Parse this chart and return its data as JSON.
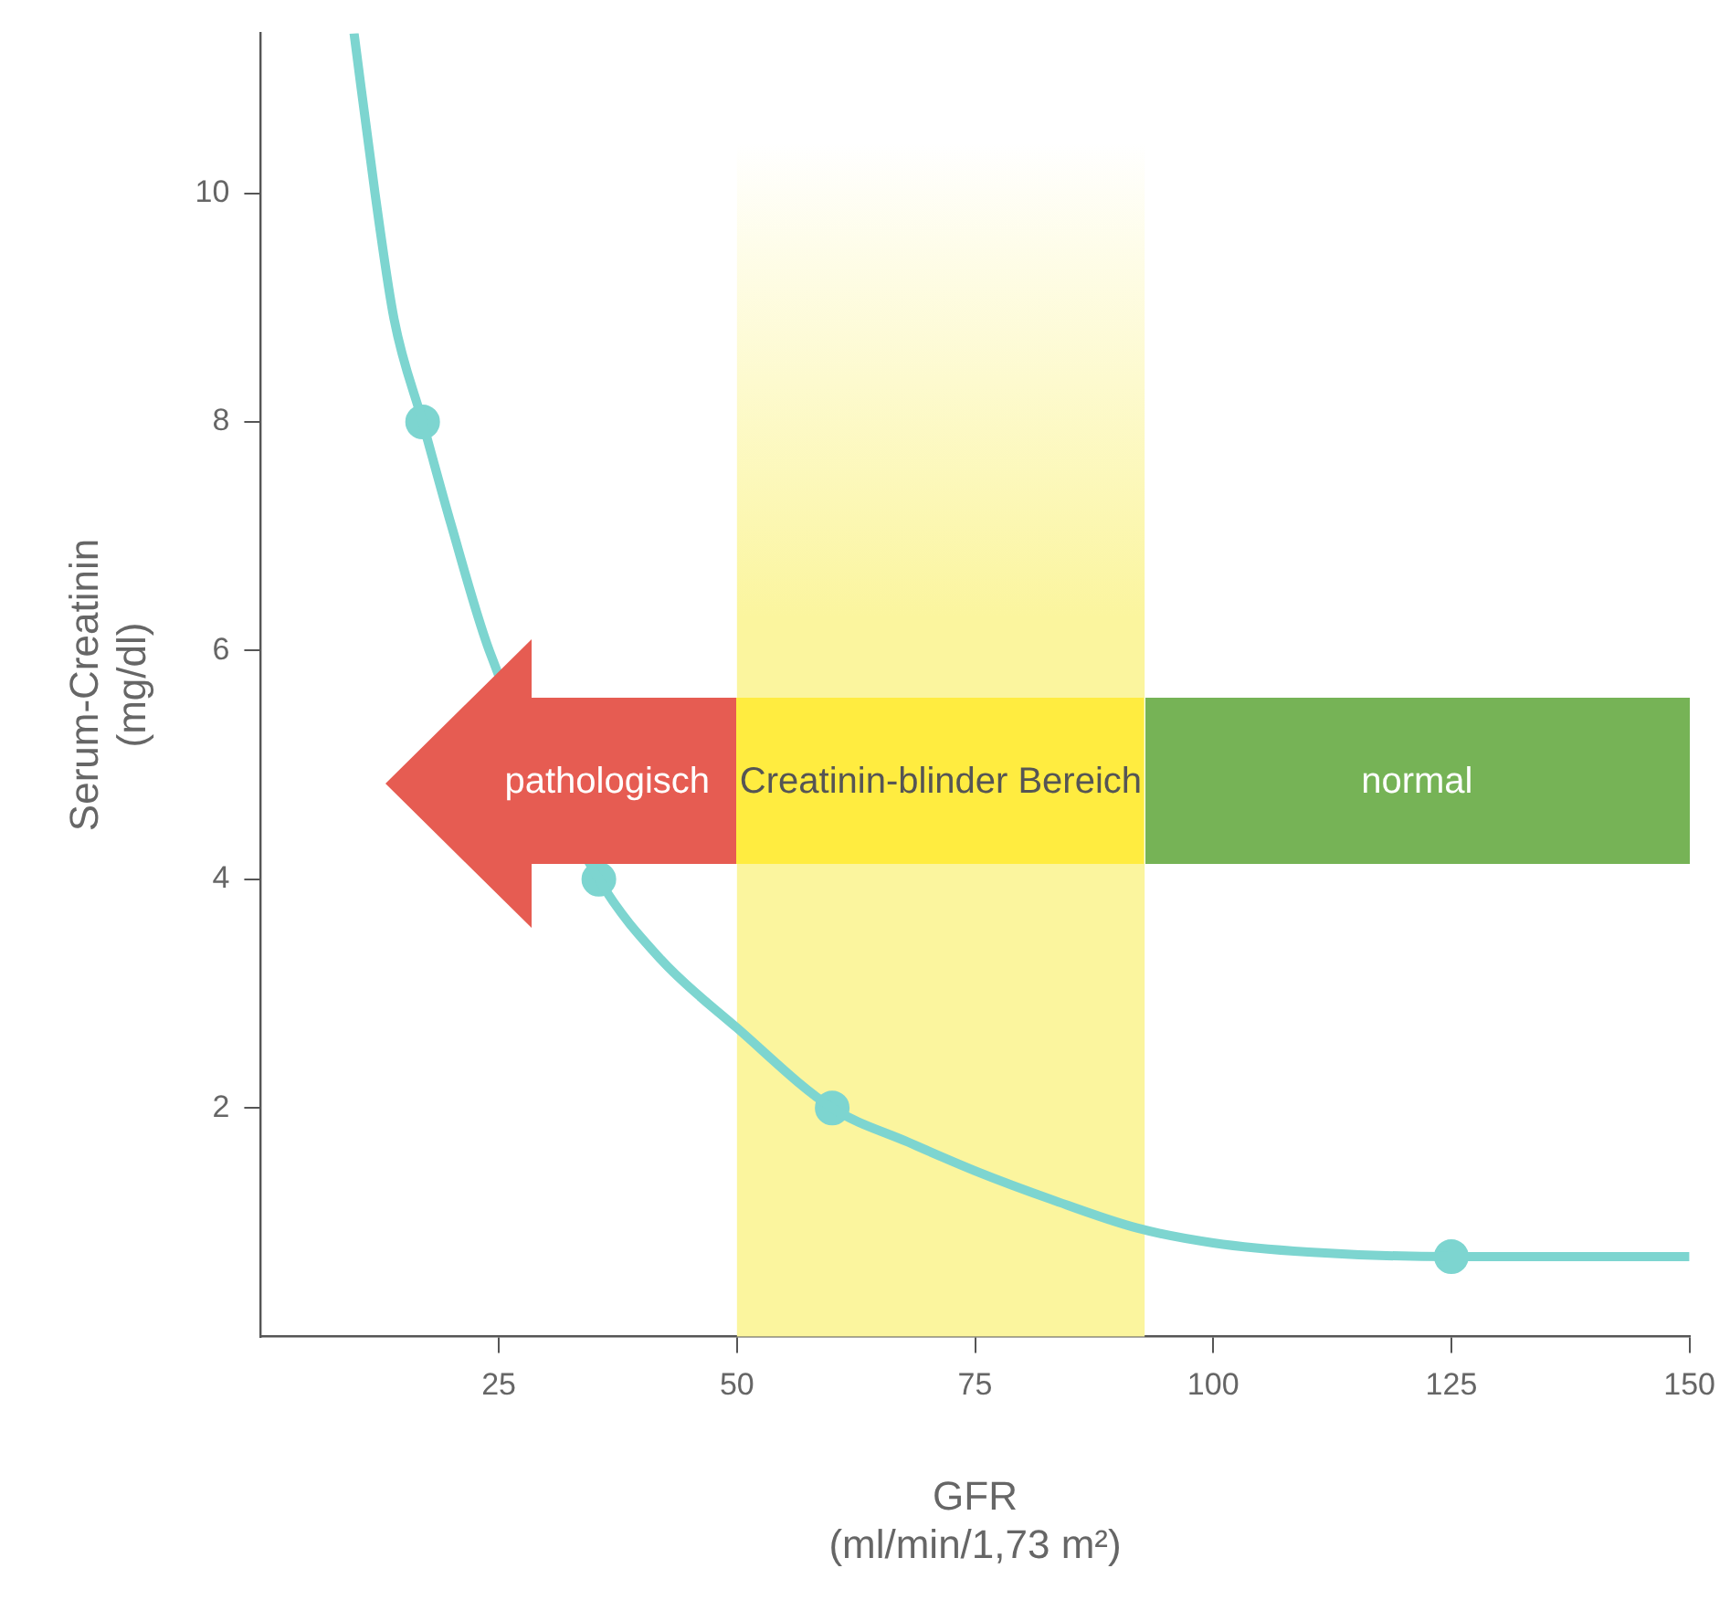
{
  "chart_data": {
    "type": "line",
    "xlabel": "GFR\n(ml/min/1,73 m²)",
    "ylabel": "Serum-Creatinin\n(mg/dl)",
    "series": [
      {
        "x": [
          9.8,
          12,
          14,
          17,
          20,
          24,
          28,
          35.5,
          42,
          50,
          60,
          68,
          75,
          83,
          92,
          100,
          110,
          125,
          140,
          150
        ],
        "values": [
          11.4,
          10,
          8.9,
          8,
          7.1,
          6,
          null,
          4,
          3.3,
          2.7,
          2,
          1.7,
          1.45,
          1.2,
          0.95,
          0.82,
          0.74,
          0.7,
          0.7,
          0.7
        ],
        "color": "#7dd5d0",
        "marker": "none"
      },
      {
        "type": "scatter",
        "x": [
          17,
          35.5,
          60,
          125
        ],
        "values": [
          8,
          4,
          2,
          0.7
        ],
        "color": "#7dd5d0",
        "marker": "circle"
      }
    ],
    "xlim": [
      0,
      150
    ],
    "xticks": [
      25,
      50,
      75,
      100,
      125,
      150
    ],
    "ylim": [
      0,
      11.4
    ],
    "yticks": [
      2,
      4,
      6,
      8,
      10
    ],
    "bands": [
      {
        "axis": "x",
        "from": 50,
        "to": 92.8,
        "color": "#fbf59e",
        "label": "Creatinin-blinder Bereich"
      }
    ],
    "annotations": [
      "pathologisch",
      "normal"
    ],
    "grid": false,
    "legend": false
  }
}
